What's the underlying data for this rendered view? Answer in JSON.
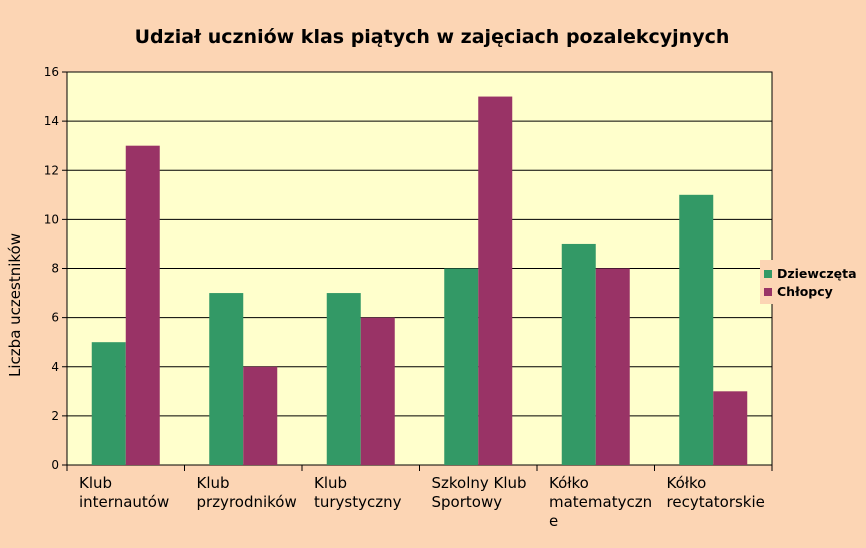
{
  "chart_data": {
    "type": "bar",
    "title": "Udział uczniów klas piątych w zajęciach pozalekcyjnych",
    "ylabel": "Liczba uczestników",
    "xlabel": "",
    "ylim": [
      0,
      16
    ],
    "yticks": [
      "0",
      "2",
      "4",
      "6",
      "8",
      "10",
      "12",
      "14",
      "16"
    ],
    "categories": [
      [
        "Klub",
        "internautów"
      ],
      [
        "Klub",
        "przyrodników"
      ],
      [
        "Klub",
        "turystyczny"
      ],
      [
        "Szkolny Klub",
        "Sportowy"
      ],
      [
        "Kółko",
        "matematyczn",
        "e"
      ],
      [
        "Kółko",
        "recytatorskie"
      ]
    ],
    "series": [
      {
        "name": "Dziewczęta",
        "color": "#339966",
        "values": [
          5,
          7,
          7,
          8,
          9,
          11
        ]
      },
      {
        "name": "Chłopcy",
        "color": "#993366",
        "values": [
          13,
          4,
          6,
          15,
          8,
          3
        ]
      }
    ],
    "grid": true,
    "legend": "right",
    "colors": {
      "background": "#fcd5b4",
      "plot_area": "#ffffcc"
    }
  }
}
